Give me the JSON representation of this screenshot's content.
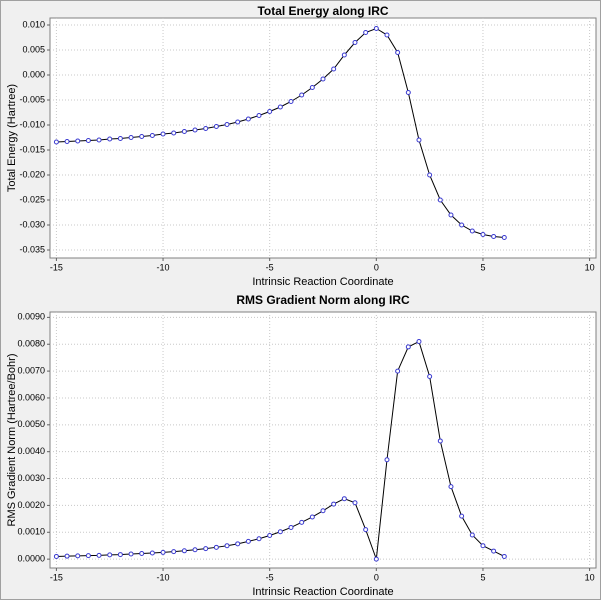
{
  "chart_data": [
    {
      "type": "line",
      "title": "Total Energy along IRC",
      "x_label": "Intrinsic Reaction Coordinate",
      "y_label": "Total Energy (Hartree)",
      "x": [
        -15,
        -14.5,
        -14,
        -13.5,
        -13,
        -12.5,
        -12,
        -11.5,
        -11,
        -10.5,
        -10,
        -9.5,
        -9,
        -8.5,
        -8,
        -7.5,
        -7,
        -6.5,
        -6,
        -5.5,
        -5,
        -4.5,
        -4,
        -3.5,
        -3,
        -2.5,
        -2,
        -1.5,
        -1,
        -0.5,
        0,
        0.5,
        1,
        1.5,
        2,
        2.5,
        3,
        3.5,
        4,
        4.5,
        5,
        5.5,
        6
      ],
      "values": [
        -0.0134,
        -0.0133,
        -0.0132,
        -0.0131,
        -0.013,
        -0.0128,
        -0.0127,
        -0.0125,
        -0.0123,
        -0.0121,
        -0.0118,
        -0.0116,
        -0.0113,
        -0.011,
        -0.0107,
        -0.0103,
        -0.0099,
        -0.0094,
        -0.0088,
        -0.0081,
        -0.0073,
        -0.0064,
        -0.0053,
        -0.004,
        -0.0025,
        -0.0008,
        0.0012,
        0.004,
        0.0065,
        0.0085,
        0.0093,
        0.008,
        0.0045,
        -0.0035,
        -0.013,
        -0.02,
        -0.025,
        -0.028,
        -0.03,
        -0.0312,
        -0.0319,
        -0.0323,
        -0.0325
      ],
      "color": "#000000",
      "marker_color": "#3a3ad0",
      "xlim": [
        -15.3,
        10.3
      ],
      "xticks": [
        -15,
        -10,
        -5,
        0,
        5,
        10
      ],
      "ylim": [
        -0.0366,
        0.0114
      ],
      "yticks": [
        {
          "value": 0.01,
          "label": "0.010"
        },
        {
          "value": 0.005,
          "label": "0.005"
        },
        {
          "value": 0,
          "label": "0.000"
        },
        {
          "value": -0.005,
          "label": "-0.005"
        },
        {
          "value": -0.01,
          "label": "-0.010"
        },
        {
          "value": -0.015,
          "label": "-0.015"
        },
        {
          "value": -0.02,
          "label": "-0.020"
        },
        {
          "value": -0.025,
          "label": "-0.025"
        },
        {
          "value": -0.03,
          "label": "-0.030"
        },
        {
          "value": -0.035,
          "label": "-0.035"
        }
      ],
      "grid": true
    },
    {
      "type": "line",
      "title": "RMS Gradient Norm along IRC",
      "x_label": "Intrinsic Reaction Coordinate",
      "y_label": "RMS Gradient Norm (Hartree/Bohr)",
      "x": [
        -15,
        -14.5,
        -14,
        -13.5,
        -13,
        -12.5,
        -12,
        -11.5,
        -11,
        -10.5,
        -10,
        -9.5,
        -9,
        -8.5,
        -8,
        -7.5,
        -7,
        -6.5,
        -6,
        -5.5,
        -5,
        -4.5,
        -4,
        -3.5,
        -3,
        -2.5,
        -2,
        -1.5,
        -1,
        -0.5,
        0,
        0.5,
        1,
        1.5,
        2,
        2.5,
        3,
        3.5,
        4,
        4.5,
        5,
        5.5,
        6
      ],
      "values": [
        0.0001,
        0.00011,
        0.00012,
        0.00013,
        0.00014,
        0.00016,
        0.00017,
        0.00019,
        0.00021,
        0.00023,
        0.00025,
        0.00028,
        0.00031,
        0.00035,
        0.00039,
        0.00044,
        0.0005,
        0.00057,
        0.00066,
        0.00076,
        0.00088,
        0.00102,
        0.00118,
        0.00137,
        0.00157,
        0.0018,
        0.00205,
        0.00225,
        0.0021,
        0.0011,
        0,
        0.0037,
        0.007,
        0.0079,
        0.0081,
        0.0068,
        0.0044,
        0.0027,
        0.0016,
        0.0009,
        0.0005,
        0.0003,
        0.0001
      ],
      "color": "#000000",
      "marker_color": "#3a3ad0",
      "xlim": [
        -15.3,
        10.3
      ],
      "xticks": [
        -15,
        -10,
        -5,
        0,
        5,
        10
      ],
      "ylim": [
        -0.00033,
        0.0092
      ],
      "yticks": [
        {
          "value": 0.009,
          "label": "0.0090"
        },
        {
          "value": 0.008,
          "label": "0.0080"
        },
        {
          "value": 0.007,
          "label": "0.0070"
        },
        {
          "value": 0.006,
          "label": "0.0060"
        },
        {
          "value": 0.005,
          "label": "0.0050"
        },
        {
          "value": 0.004,
          "label": "0.0040"
        },
        {
          "value": 0.003,
          "label": "0.0030"
        },
        {
          "value": 0.002,
          "label": "0.0020"
        },
        {
          "value": 0.001,
          "label": "0.0010"
        },
        {
          "value": 0,
          "label": "0.0000"
        }
      ],
      "grid": true
    }
  ]
}
